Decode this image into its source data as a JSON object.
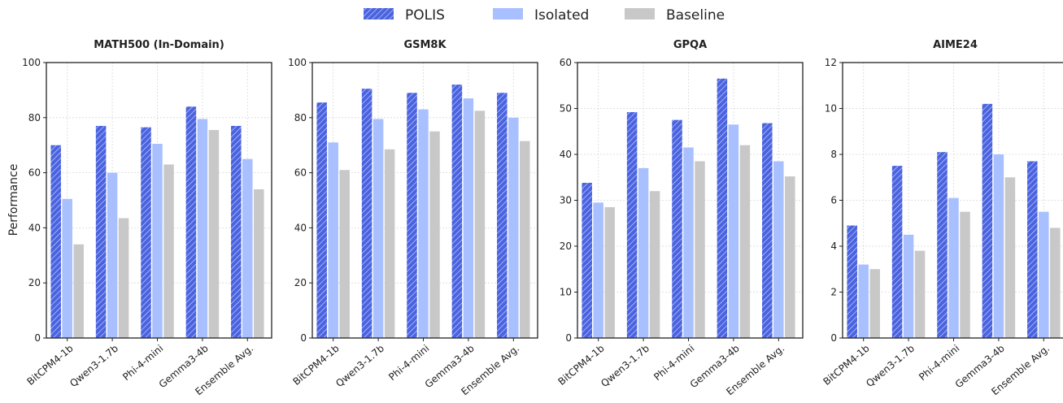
{
  "legend": [
    {
      "name": "POLIS",
      "color": "#4a63e0",
      "pattern": "hatch"
    },
    {
      "name": "Isolated",
      "color": "#a8c0ff",
      "pattern": "solid"
    },
    {
      "name": "Baseline",
      "color": "#c8c8c8",
      "pattern": "solid"
    }
  ],
  "ylabel": "Performance",
  "chart_data": [
    {
      "type": "bar",
      "title": "MATH500 (In-Domain)",
      "categories": [
        "BitCPM4-1b",
        "Qwen3-1.7b",
        "Phi-4-mini",
        "Gemma3-4b",
        "Ensemble Avg."
      ],
      "ylim": [
        0,
        100
      ],
      "yticks": [
        "0",
        "20",
        "40",
        "60",
        "80",
        "100"
      ],
      "grid": true,
      "series": [
        {
          "name": "POLIS",
          "values": [
            70,
            77,
            76.5,
            84,
            77
          ]
        },
        {
          "name": "Isolated",
          "values": [
            50.5,
            60,
            70.5,
            79.5,
            65
          ]
        },
        {
          "name": "Baseline",
          "values": [
            34,
            43.5,
            63,
            75.5,
            54
          ]
        }
      ]
    },
    {
      "type": "bar",
      "title": "GSM8K",
      "categories": [
        "BitCPM4-1b",
        "Qwen3-1.7b",
        "Phi-4-mini",
        "Gemma3-4b",
        "Ensemble Avg."
      ],
      "ylim": [
        0,
        100
      ],
      "yticks": [
        "0",
        "20",
        "40",
        "60",
        "80",
        "100"
      ],
      "grid": true,
      "series": [
        {
          "name": "POLIS",
          "values": [
            85.5,
            90.5,
            89,
            92,
            89
          ]
        },
        {
          "name": "Isolated",
          "values": [
            71,
            79.5,
            83,
            87,
            80
          ]
        },
        {
          "name": "Baseline",
          "values": [
            61,
            68.5,
            75,
            82.5,
            71.5
          ]
        }
      ]
    },
    {
      "type": "bar",
      "title": "GPQA",
      "categories": [
        "BitCPM4-1b",
        "Qwen3-1.7b",
        "Phi-4-mini",
        "Gemma3-4b",
        "Ensemble Avg."
      ],
      "ylim": [
        0,
        60
      ],
      "yticks": [
        "0",
        "10",
        "20",
        "30",
        "40",
        "50",
        "60"
      ],
      "grid": true,
      "series": [
        {
          "name": "POLIS",
          "values": [
            33.8,
            49.2,
            47.5,
            56.5,
            46.8
          ]
        },
        {
          "name": "Isolated",
          "values": [
            29.5,
            37,
            41.5,
            46.5,
            38.5
          ]
        },
        {
          "name": "Baseline",
          "values": [
            28.5,
            32,
            38.5,
            42,
            35.2
          ]
        }
      ]
    },
    {
      "type": "bar",
      "title": "AIME24",
      "categories": [
        "BitCPM4-1b",
        "Qwen3-1.7b",
        "Phi-4-mini",
        "Gemma3-4b",
        "Ensemble Avg."
      ],
      "ylim": [
        0,
        12
      ],
      "yticks": [
        "0",
        "2",
        "4",
        "6",
        "8",
        "10",
        "12"
      ],
      "grid": true,
      "series": [
        {
          "name": "POLIS",
          "values": [
            4.9,
            7.5,
            8.1,
            10.2,
            7.7
          ]
        },
        {
          "name": "Isolated",
          "values": [
            3.2,
            4.5,
            6.1,
            8,
            5.5
          ]
        },
        {
          "name": "Baseline",
          "values": [
            3,
            3.8,
            5.5,
            7,
            4.8
          ]
        }
      ]
    }
  ]
}
